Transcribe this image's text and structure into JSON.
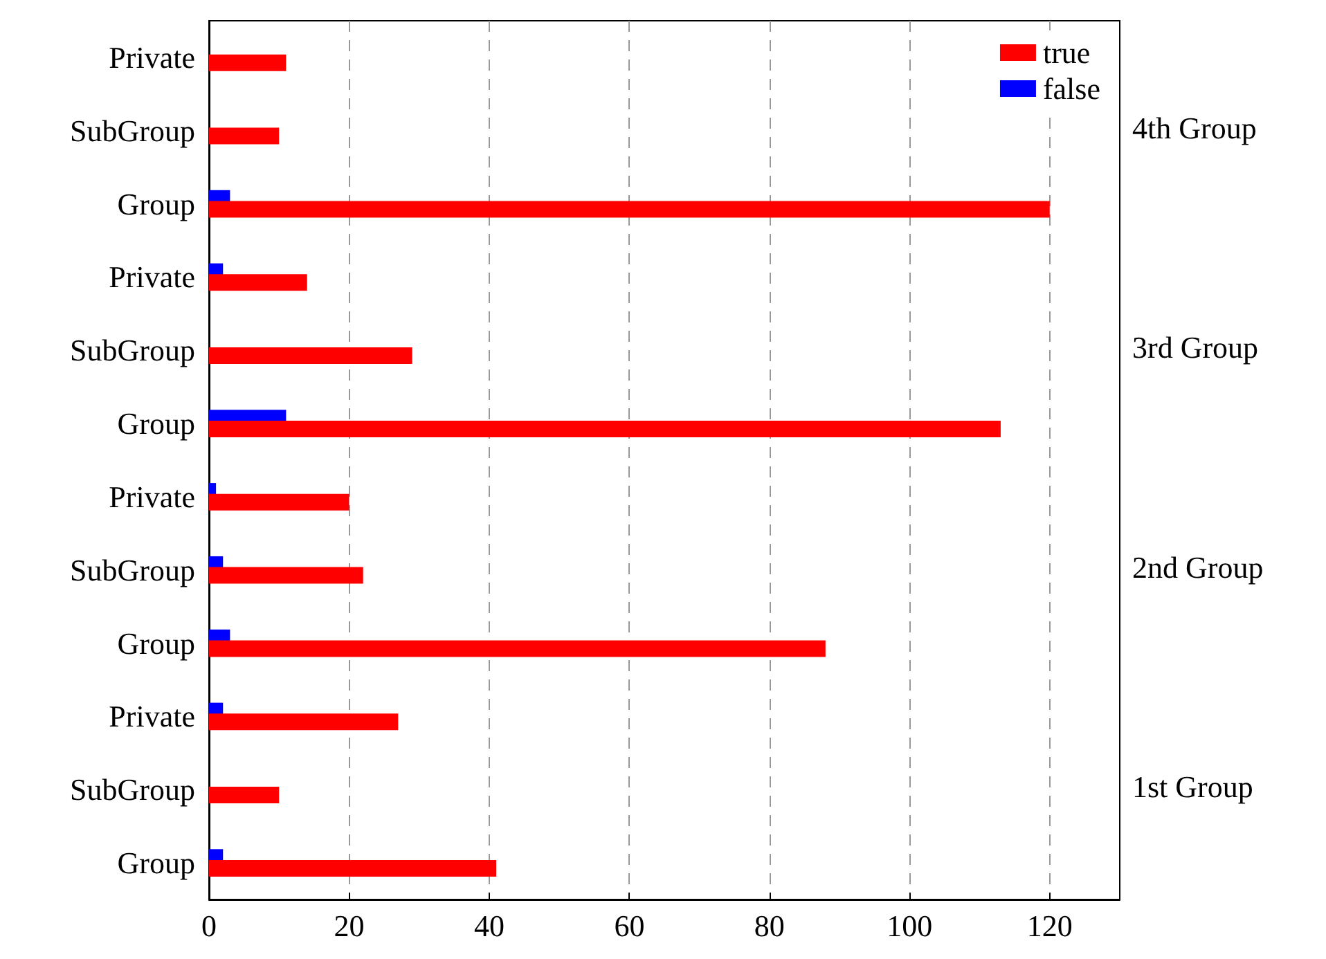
{
  "chart_data": {
    "type": "bar",
    "orientation": "horizontal",
    "categories": [
      "Private",
      "SubGroup",
      "Group",
      "Private",
      "SubGroup",
      "Group",
      "Private",
      "SubGroup",
      "Group",
      "Private",
      "SubGroup",
      "Group"
    ],
    "series": [
      {
        "name": "true",
        "color": "#ff0000",
        "values": [
          11,
          10,
          120,
          14,
          29,
          113,
          20,
          22,
          88,
          27,
          10,
          41
        ]
      },
      {
        "name": "false",
        "color": "#0000ff",
        "values": [
          0,
          0,
          3,
          2,
          0,
          11,
          1,
          2,
          3,
          2,
          0,
          2
        ]
      }
    ],
    "xlim": [
      0,
      130
    ],
    "xticks": [
      0,
      20,
      40,
      60,
      80,
      100,
      120
    ],
    "grid": "x",
    "legend": "top right",
    "annotations": [
      "4th Group",
      "3rd Group",
      "2nd Group",
      "1st Group"
    ]
  }
}
